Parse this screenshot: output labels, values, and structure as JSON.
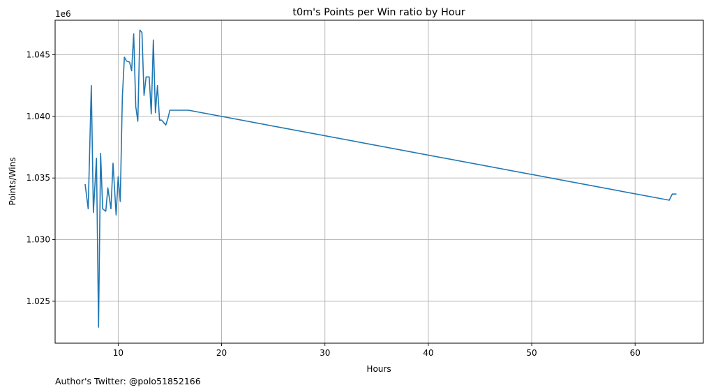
{
  "chart_data": {
    "type": "line",
    "title": "t0m's Points per Win ratio by Hour",
    "xlabel": "Hours",
    "ylabel": "Points/Wins",
    "y_offset_label": "1e6",
    "xlim": [
      3.9,
      66.6
    ],
    "ylim": [
      1.0216,
      1.0478
    ],
    "x_ticks": [
      10,
      20,
      30,
      40,
      50,
      60
    ],
    "x_tick_labels": [
      "10",
      "20",
      "30",
      "40",
      "50",
      "60"
    ],
    "y_ticks": [
      1.025,
      1.03,
      1.035,
      1.04,
      1.045
    ],
    "y_tick_labels": [
      "1.025",
      "1.030",
      "1.035",
      "1.040",
      "1.045"
    ],
    "grid": true,
    "line_color": "#1f77b4",
    "series": [
      {
        "x": [
          6.8,
          7.1,
          7.4,
          7.6,
          7.9,
          8.1,
          8.3,
          8.5,
          8.8,
          9.0,
          9.3,
          9.5,
          9.8,
          10.0,
          10.2,
          10.4,
          10.6,
          10.8,
          11.1,
          11.3,
          11.5,
          11.7,
          11.9,
          12.1,
          12.3,
          12.5,
          12.7,
          13.0,
          13.2,
          13.4,
          13.6,
          13.8,
          14.0,
          14.2,
          14.4,
          14.6,
          14.8,
          15.0,
          15.3,
          15.5,
          16.8,
          63.3,
          63.6,
          64.0
        ],
        "y": [
          1.0345,
          1.0325,
          1.0425,
          1.0322,
          1.0366,
          1.0229,
          1.037,
          1.0325,
          1.0323,
          1.0342,
          1.0325,
          1.0362,
          1.032,
          1.0351,
          1.0331,
          1.0415,
          1.0448,
          1.0445,
          1.0444,
          1.0437,
          1.0467,
          1.0408,
          1.0396,
          1.047,
          1.0468,
          1.0417,
          1.0432,
          1.0432,
          1.0402,
          1.0462,
          1.0403,
          1.0425,
          1.0397,
          1.0397,
          1.0395,
          1.0393,
          1.0398,
          1.0405,
          1.0405,
          1.0405,
          1.0405,
          1.0332,
          1.0337,
          1.0337
        ]
      }
    ]
  },
  "footer": {
    "author_text": "Author's Twitter: @polo51852166"
  }
}
